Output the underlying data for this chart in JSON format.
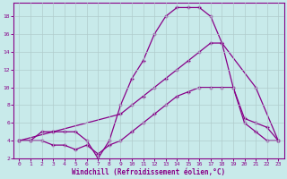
{
  "background_color": "#c8eaea",
  "grid_color": "#b0cccc",
  "line_color": "#880088",
  "marker": "+",
  "xlabel": "Windchill (Refroidissement éolien,°C)",
  "xlim": [
    -0.5,
    23.5
  ],
  "ylim": [
    2,
    19.5
  ],
  "yticks": [
    2,
    4,
    6,
    8,
    10,
    12,
    14,
    16,
    18
  ],
  "xticks": [
    0,
    1,
    2,
    3,
    4,
    5,
    6,
    7,
    8,
    9,
    10,
    11,
    12,
    13,
    14,
    15,
    16,
    17,
    18,
    19,
    20,
    21,
    22,
    23
  ],
  "series1_x": [
    0,
    1,
    2,
    3,
    4,
    5,
    6,
    7,
    8,
    9,
    10,
    11,
    12,
    13,
    14,
    15,
    16,
    17,
    18,
    19,
    20,
    21,
    22,
    23
  ],
  "series1_y": [
    4,
    4,
    5,
    5,
    5,
    5,
    4,
    2,
    4,
    8,
    11,
    13,
    16,
    18,
    19,
    19,
    19,
    18,
    15,
    10,
    6,
    5,
    4,
    4
  ],
  "series2_x": [
    0,
    3,
    9,
    10,
    11,
    12,
    13,
    14,
    15,
    16,
    17,
    18,
    21,
    23
  ],
  "series2_y": [
    4,
    5,
    7,
    8,
    9,
    10,
    11,
    12,
    13,
    14,
    15,
    15,
    10,
    4
  ],
  "series3_x": [
    0,
    1,
    2,
    3,
    4,
    5,
    6,
    7,
    8,
    9,
    10,
    11,
    12,
    13,
    14,
    15,
    16,
    17,
    18,
    19,
    20,
    21,
    22,
    23
  ],
  "series3_y": [
    4,
    4,
    4,
    3.5,
    3.5,
    3,
    3.5,
    2.5,
    3.5,
    4,
    5,
    6,
    7,
    8,
    9,
    9.5,
    10,
    10,
    10,
    10,
    6.5,
    6,
    5.5,
    4
  ]
}
